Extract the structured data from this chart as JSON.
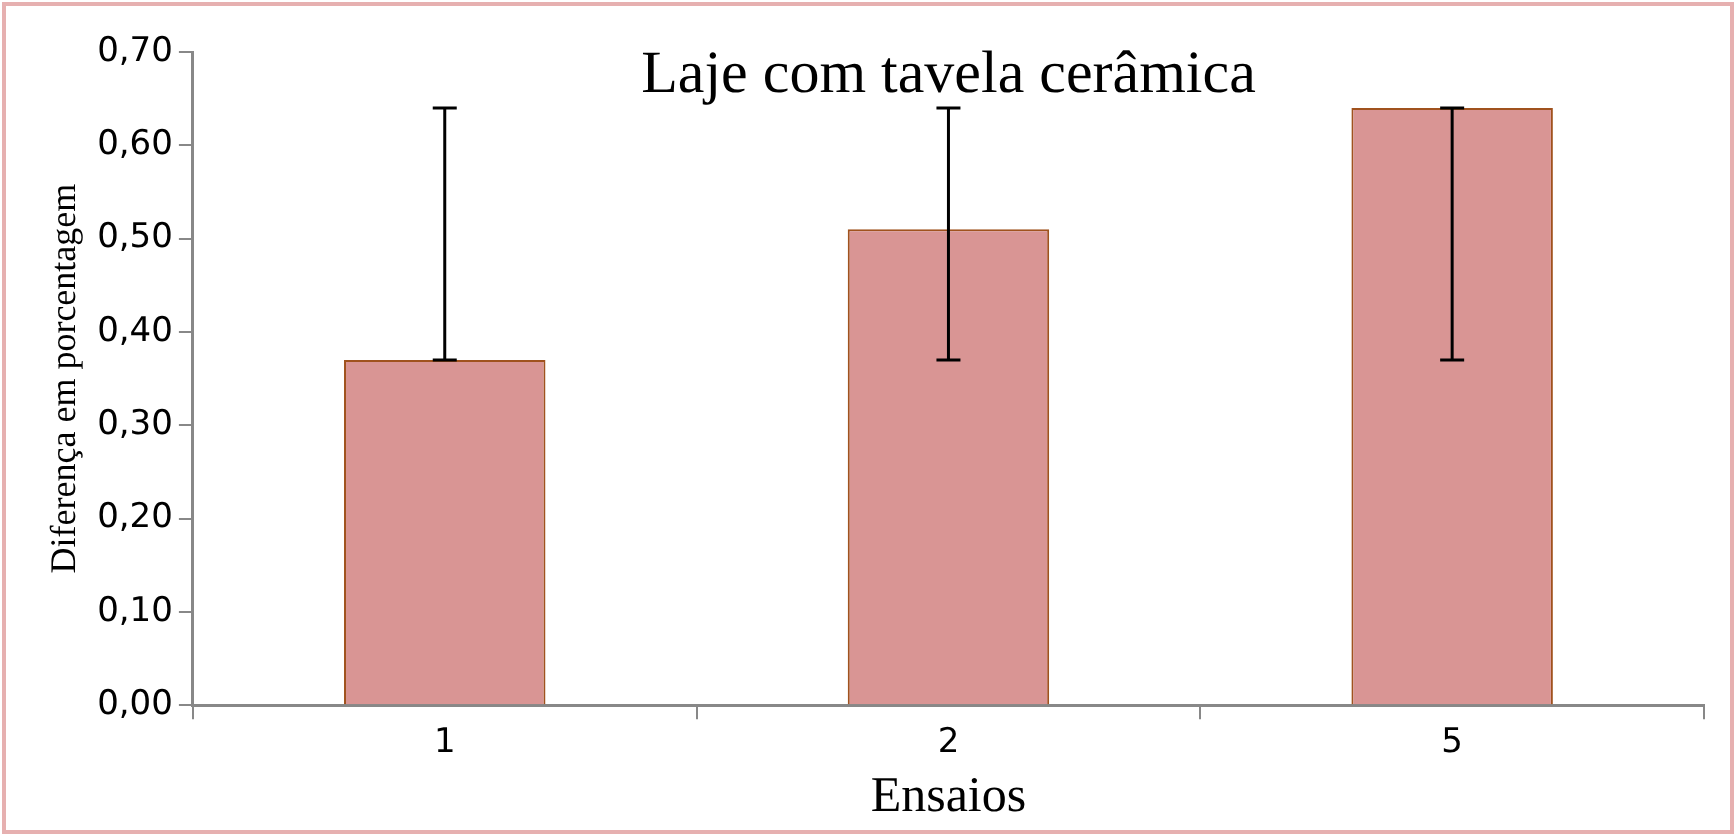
{
  "chart_data": {
    "type": "bar",
    "title": "Laje com tavela cerâmica",
    "xlabel": "Ensaios",
    "ylabel": "Diferença em porcentagem",
    "categories": [
      "1",
      "2",
      "5"
    ],
    "series": [
      {
        "color": "#d99594",
        "values": [
          0.37,
          0.51,
          0.64
        ],
        "errors": [
          [
            0.37,
            0.64
          ],
          [
            0.37,
            0.64
          ],
          [
            0.37,
            0.64
          ]
        ]
      }
    ],
    "ylim": [
      0,
      0.7
    ],
    "yticks": [
      {
        "value": 0,
        "label": "0,00"
      },
      {
        "value": 0.1,
        "label": "0,10"
      },
      {
        "value": 0.2,
        "label": "0,20"
      },
      {
        "value": 0.3,
        "label": "0,30"
      },
      {
        "value": 0.4,
        "label": "0,40"
      },
      {
        "value": 0.5,
        "label": "0,50"
      },
      {
        "value": 0.6,
        "label": "0,60"
      },
      {
        "value": 0.7,
        "label": "0,70"
      }
    ],
    "grid": false,
    "legend": false
  }
}
